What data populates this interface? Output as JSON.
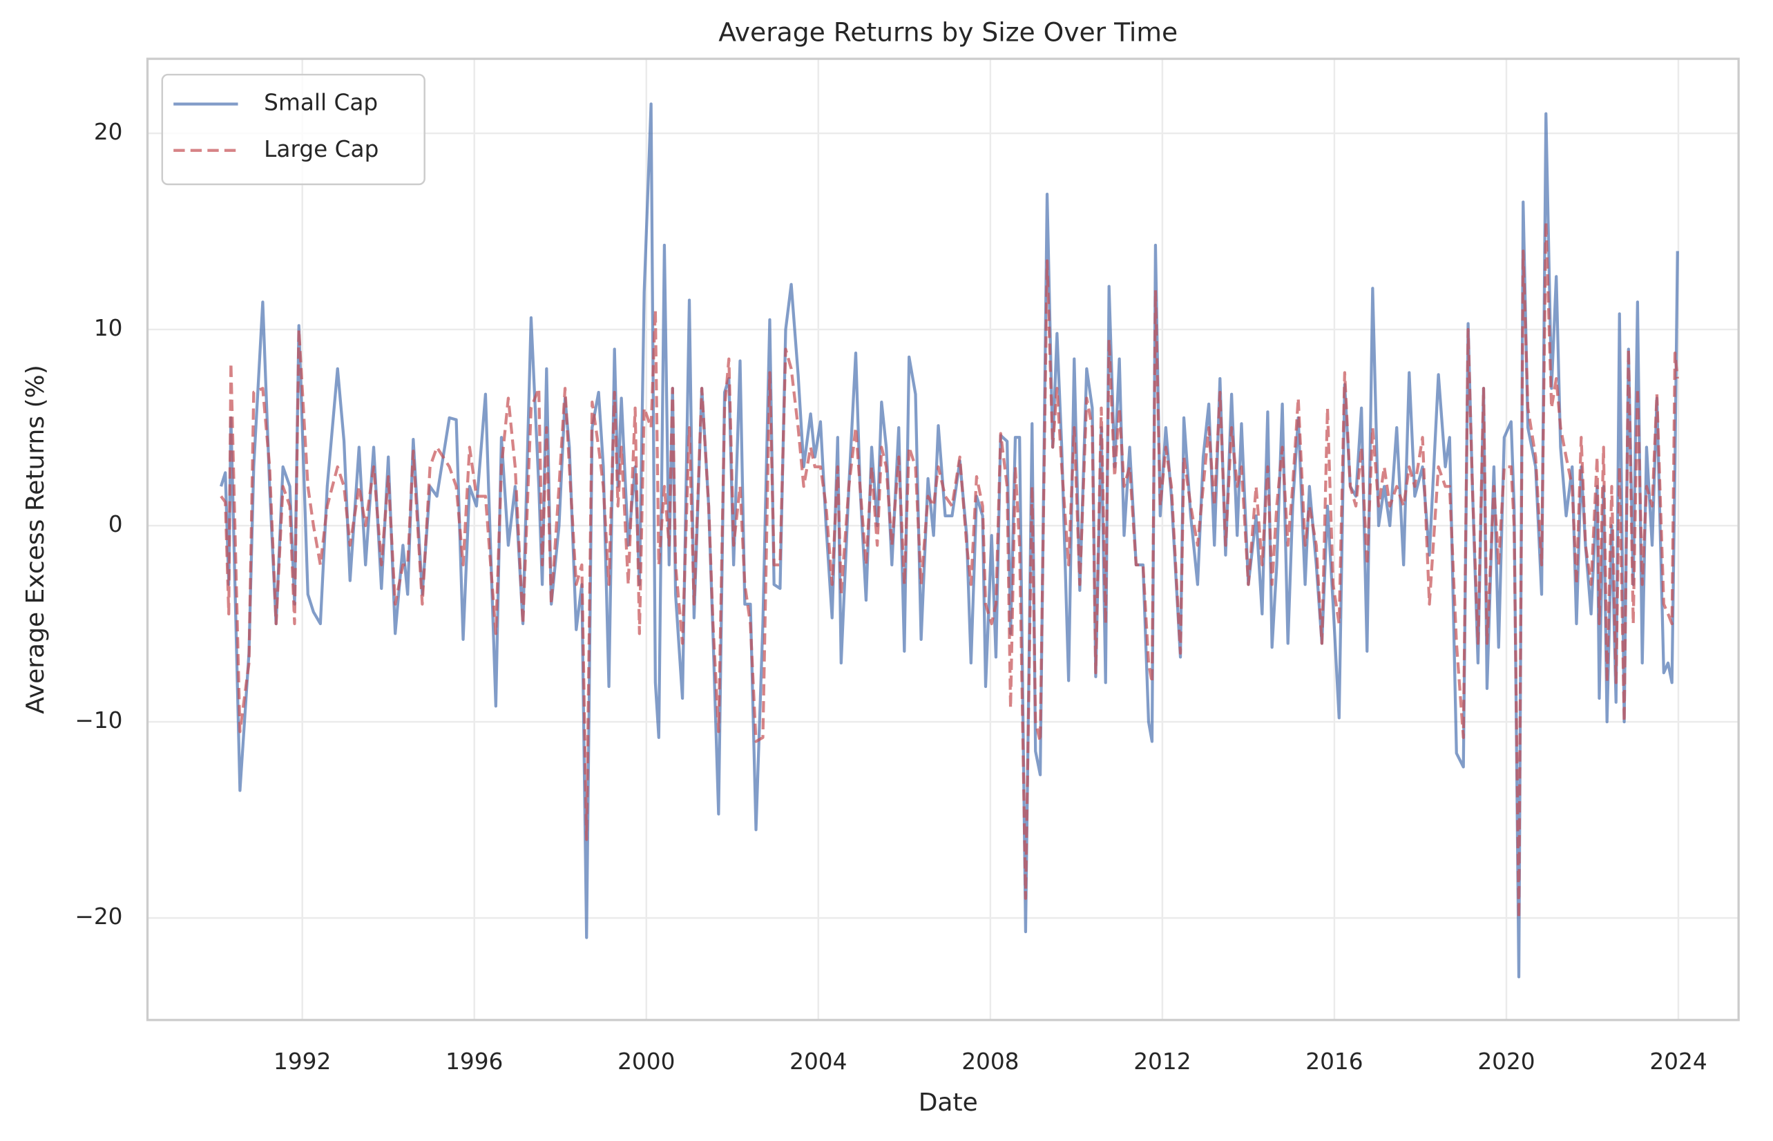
{
  "chart_data": {
    "type": "line",
    "title": "Average Returns by Size Over Time",
    "xlabel": "Date",
    "ylabel": "Average Excess Returns (%)",
    "xlim": [
      1988.4,
      2025.4
    ],
    "ylim": [
      -25.2,
      23.8
    ],
    "xticks": [
      1992,
      1996,
      2000,
      2004,
      2008,
      2012,
      2016,
      2020,
      2024
    ],
    "yticks": [
      {
        "value": -20,
        "label": "−20"
      },
      {
        "value": -10,
        "label": "−10"
      },
      0,
      10,
      20
    ],
    "grid": true,
    "legend": "upper left",
    "x": [
      1990.11,
      1990.21,
      1990.29,
      1990.34,
      1990.55,
      1990.76,
      1990.87,
      1991.08,
      1991.24,
      1991.39,
      1991.55,
      1991.71,
      1991.82,
      1991.92,
      1992.13,
      1992.26,
      1992.42,
      1992.58,
      1992.82,
      1992.97,
      1993.11,
      1993.32,
      1993.47,
      1993.66,
      1993.84,
      1994.0,
      1994.16,
      1994.34,
      1994.45,
      1994.58,
      1994.79,
      1994.97,
      1995.13,
      1995.42,
      1995.58,
      1995.74,
      1995.89,
      1996.05,
      1996.26,
      1996.5,
      1996.63,
      1996.79,
      1996.95,
      1997.13,
      1997.32,
      1997.5,
      1997.58,
      1997.68,
      1997.79,
      1997.97,
      1998.11,
      1998.21,
      1998.37,
      1998.5,
      1998.61,
      1998.74,
      1998.89,
      1999.0,
      1999.13,
      1999.26,
      1999.34,
      1999.42,
      1999.58,
      1999.74,
      1999.84,
      1999.95,
      2000.11,
      2000.21,
      2000.29,
      2000.42,
      2000.53,
      2000.61,
      2000.68,
      2000.84,
      2001.0,
      2001.11,
      2001.29,
      2001.45,
      2001.55,
      2001.68,
      2001.82,
      2001.92,
      2002.03,
      2002.18,
      2002.29,
      2002.42,
      2002.55,
      2002.71,
      2002.87,
      2002.97,
      2003.11,
      2003.24,
      2003.37,
      2003.53,
      2003.66,
      2003.82,
      2003.92,
      2004.05,
      2004.18,
      2004.32,
      2004.45,
      2004.53,
      2004.71,
      2004.87,
      2004.97,
      2005.11,
      2005.24,
      2005.37,
      2005.47,
      2005.58,
      2005.71,
      2005.87,
      2006.0,
      2006.11,
      2006.26,
      2006.39,
      2006.55,
      2006.68,
      2006.79,
      2006.95,
      2007.11,
      2007.29,
      2007.45,
      2007.55,
      2007.68,
      2007.82,
      2007.89,
      2008.03,
      2008.13,
      2008.24,
      2008.39,
      2008.47,
      2008.58,
      2008.68,
      2008.82,
      2008.97,
      2009.05,
      2009.16,
      2009.32,
      2009.45,
      2009.55,
      2009.66,
      2009.82,
      2009.95,
      2010.08,
      2010.24,
      2010.37,
      2010.45,
      2010.58,
      2010.68,
      2010.76,
      2010.89,
      2011.0,
      2011.11,
      2011.24,
      2011.39,
      2011.55,
      2011.68,
      2011.76,
      2011.84,
      2011.95,
      2012.08,
      2012.21,
      2012.42,
      2012.5,
      2012.66,
      2012.82,
      2012.95,
      2013.08,
      2013.21,
      2013.34,
      2013.47,
      2013.61,
      2013.74,
      2013.84,
      2014.0,
      2014.18,
      2014.32,
      2014.45,
      2014.55,
      2014.66,
      2014.79,
      2014.92,
      2015.03,
      2015.16,
      2015.32,
      2015.42,
      2015.58,
      2015.71,
      2015.84,
      2015.97,
      2016.11,
      2016.24,
      2016.37,
      2016.5,
      2016.63,
      2016.76,
      2016.89,
      2017.03,
      2017.16,
      2017.29,
      2017.45,
      2017.61,
      2017.74,
      2017.87,
      2018.05,
      2018.21,
      2018.42,
      2018.58,
      2018.68,
      2018.84,
      2019.0,
      2019.11,
      2019.21,
      2019.34,
      2019.47,
      2019.55,
      2019.71,
      2019.82,
      2019.95,
      2020.11,
      2020.18,
      2020.29,
      2020.39,
      2020.5,
      2020.68,
      2020.82,
      2020.92,
      2021.05,
      2021.16,
      2021.26,
      2021.39,
      2021.53,
      2021.63,
      2021.74,
      2021.84,
      2021.97,
      2022.11,
      2022.16,
      2022.26,
      2022.34,
      2022.45,
      2022.55,
      2022.63,
      2022.74,
      2022.84,
      2022.95,
      2023.05,
      2023.16,
      2023.26,
      2023.39,
      2023.5,
      2023.66,
      2023.76,
      2023.85,
      2023.92,
      2023.98
    ],
    "series": [
      {
        "name": "Small Cap",
        "color": "#4c72b0",
        "linestyle": "solid",
        "values": [
          2,
          2.7,
          -3,
          5.5,
          -13.5,
          -6.5,
          3,
          11.4,
          2,
          -5,
          3,
          2,
          -4,
          10.2,
          -3.5,
          -4.4,
          -5,
          2,
          8,
          4.3,
          -2.8,
          4,
          -2,
          4,
          -3.2,
          3.5,
          -5.5,
          -1,
          -3.5,
          4.4,
          -3.5,
          2,
          1.5,
          5.5,
          5.4,
          -5.8,
          2,
          1,
          6.7,
          -9.2,
          4.5,
          -1,
          2,
          -5,
          10.6,
          2,
          -3,
          8,
          -4,
          0,
          6.5,
          4,
          -5.3,
          -3,
          -21,
          5,
          6.8,
          3,
          -8.2,
          9,
          2,
          6.5,
          -1,
          3,
          -3,
          11.9,
          21.5,
          -8,
          -10.8,
          14.3,
          -2,
          7,
          -3.5,
          -8.8,
          11.5,
          -4.7,
          7,
          1,
          -5.5,
          -14.7,
          6.8,
          7.5,
          -2,
          8.4,
          -4,
          -4,
          -15.5,
          -5,
          10.5,
          -3,
          -3.2,
          10,
          12.3,
          7.7,
          3,
          5.7,
          3.5,
          5.3,
          0,
          -4.7,
          4.5,
          -7,
          2,
          8.8,
          2,
          -3.8,
          4,
          0,
          6.3,
          4,
          -2,
          5,
          -6.4,
          8.6,
          6.7,
          -5.8,
          2.4,
          -0.5,
          5.1,
          0.5,
          0.5,
          3.3,
          -0.5,
          -7,
          1.5,
          0.5,
          -8.2,
          -0.5,
          -6.7,
          4.6,
          4.3,
          -5.5,
          4.5,
          4.5,
          -20.7,
          5.2,
          -11.5,
          -12.7,
          16.9,
          4,
          9.8,
          4,
          -7.9,
          8.5,
          -3.3,
          8,
          6,
          -7.7,
          5,
          -8,
          12.2,
          3,
          8.5,
          -0.5,
          4,
          -2,
          -2,
          -10,
          -11,
          14.3,
          0.5,
          5,
          1.5,
          -6.7,
          5.5,
          0.5,
          -3,
          3.5,
          6.2,
          -1,
          7.5,
          -1.5,
          6.7,
          -0.5,
          5.2,
          -3,
          0.5,
          -4.5,
          5.8,
          -6.2,
          -2,
          6.2,
          -6,
          1,
          5.5,
          -3,
          2,
          -2,
          -6,
          1,
          -4,
          -9.8,
          7.2,
          2,
          1.5,
          6,
          -6.4,
          12.1,
          0,
          2,
          0,
          5,
          -2,
          7.8,
          1.5,
          3,
          -1.5,
          7.7,
          3,
          4.5,
          -11.6,
          -12.3,
          10.3,
          2,
          -7,
          7,
          -8.3,
          3,
          -6.2,
          4.5,
          5.3,
          1,
          -23,
          16.5,
          5,
          3,
          -3.5,
          21,
          7,
          12.7,
          4,
          0.5,
          3,
          -5,
          3,
          -1,
          -4.5,
          2,
          -8.8,
          2,
          -10,
          0,
          -9,
          10.8,
          -10,
          9,
          -3,
          11.4,
          -7,
          4,
          -1,
          6.5,
          -7.5,
          -7,
          -8,
          3,
          14
        ]
      },
      {
        "name": "Large Cap",
        "color": "#c44e52",
        "linestyle": "dashed",
        "values": [
          1.5,
          1.2,
          -4.5,
          8.3,
          -10.5,
          -7,
          6.8,
          7,
          3,
          -5,
          2,
          1,
          -5,
          10,
          2,
          0,
          -2,
          1,
          3,
          2,
          -1,
          2,
          0,
          3,
          -2,
          2.5,
          -4,
          -2,
          -2,
          3.8,
          -4,
          3,
          4,
          3,
          2,
          -2,
          4,
          1.5,
          1.5,
          -5.5,
          3,
          6.5,
          3,
          -5,
          6,
          7,
          -2,
          5,
          -4,
          2,
          7,
          3,
          -3,
          -2,
          -16,
          6.3,
          4,
          2,
          -3,
          6.8,
          1,
          4,
          -3,
          6,
          -5.5,
          6,
          5,
          11,
          -2,
          2,
          -1,
          7,
          -2,
          -6,
          5,
          -4,
          7,
          1,
          -5,
          -10.5,
          6,
          8.5,
          -1,
          2,
          -3,
          -5,
          -11,
          -10.8,
          7.8,
          -2,
          -2,
          9,
          8,
          5,
          2,
          4,
          3,
          3,
          1,
          -3,
          3,
          -3.5,
          2,
          5,
          2,
          -2,
          3,
          -1,
          4,
          3,
          -1,
          3.5,
          -3,
          4,
          3,
          -3,
          1.5,
          1,
          3,
          1.5,
          1,
          3.5,
          -1,
          -3,
          2.5,
          1,
          -4,
          -5,
          -4,
          4.7,
          2,
          -9.3,
          3,
          -1,
          -19,
          2,
          -10,
          -11,
          13.5,
          4,
          7,
          3,
          -2,
          5,
          -3,
          6.5,
          5,
          -7.5,
          6,
          -5,
          9.5,
          2.5,
          6,
          2,
          3,
          -2,
          -2,
          -7,
          -8,
          12,
          1,
          4,
          2,
          -6.5,
          3.5,
          1,
          -1,
          2,
          5,
          1,
          6.8,
          -1,
          5,
          2,
          3,
          -3,
          2,
          -2,
          3,
          -3,
          1,
          4,
          -1,
          2,
          6.5,
          -1,
          1,
          -1,
          -6,
          6,
          -3,
          -5,
          7.8,
          2,
          1,
          4,
          -2,
          5,
          1,
          3,
          1,
          2,
          1,
          3,
          2,
          4.5,
          -4,
          3,
          2,
          2,
          -6,
          -10.8,
          10,
          2,
          -6,
          7,
          -6,
          2,
          -2,
          3,
          3,
          0,
          -20,
          14,
          6,
          3.5,
          -2,
          15.5,
          6,
          7.5,
          5,
          3.5,
          2,
          -3,
          4.5,
          -1,
          -3,
          3.5,
          -5,
          4,
          -8,
          2,
          -8,
          3,
          -10,
          9,
          -5,
          7,
          -3,
          2,
          1,
          6.7,
          -4,
          -4.5,
          -5,
          8.8,
          7.5
        ]
      }
    ]
  }
}
